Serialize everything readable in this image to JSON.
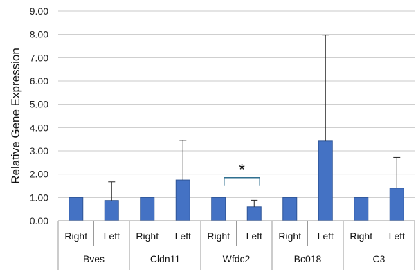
{
  "chart_data": {
    "type": "bar",
    "title": "",
    "xlabel": "",
    "ylabel": "Relative Gene Expression",
    "ylim": [
      0,
      9
    ],
    "yticks": [
      "0.00",
      "1.00",
      "2.00",
      "3.00",
      "4.00",
      "5.00",
      "6.00",
      "7.00",
      "8.00",
      "9.00"
    ],
    "grid": true,
    "legend": "none",
    "bar_color": "#4472C4",
    "groups": [
      {
        "name": "Bves",
        "bars": [
          {
            "label": "Right",
            "value": 1.0,
            "error": 0.0
          },
          {
            "label": "Left",
            "value": 0.87,
            "error": 0.8
          }
        ]
      },
      {
        "name": "Cldn11",
        "bars": [
          {
            "label": "Right",
            "value": 1.0,
            "error": 0.0
          },
          {
            "label": "Left",
            "value": 1.75,
            "error": 1.7
          }
        ]
      },
      {
        "name": "Wfdc2",
        "bars": [
          {
            "label": "Right",
            "value": 1.0,
            "error": 0.0
          },
          {
            "label": "Left",
            "value": 0.6,
            "error": 0.28
          }
        ]
      },
      {
        "name": "Bc018",
        "bars": [
          {
            "label": "Right",
            "value": 1.0,
            "error": 0.0
          },
          {
            "label": "Left",
            "value": 3.42,
            "error": 4.55
          }
        ]
      },
      {
        "name": "C3",
        "bars": [
          {
            "label": "Right",
            "value": 1.0,
            "error": 0.0
          },
          {
            "label": "Left",
            "value": 1.4,
            "error": 1.32
          }
        ]
      }
    ],
    "annotations": [
      {
        "text": "*",
        "group": "Wfdc2",
        "type": "significance-bracket",
        "value": 1.85
      }
    ]
  }
}
